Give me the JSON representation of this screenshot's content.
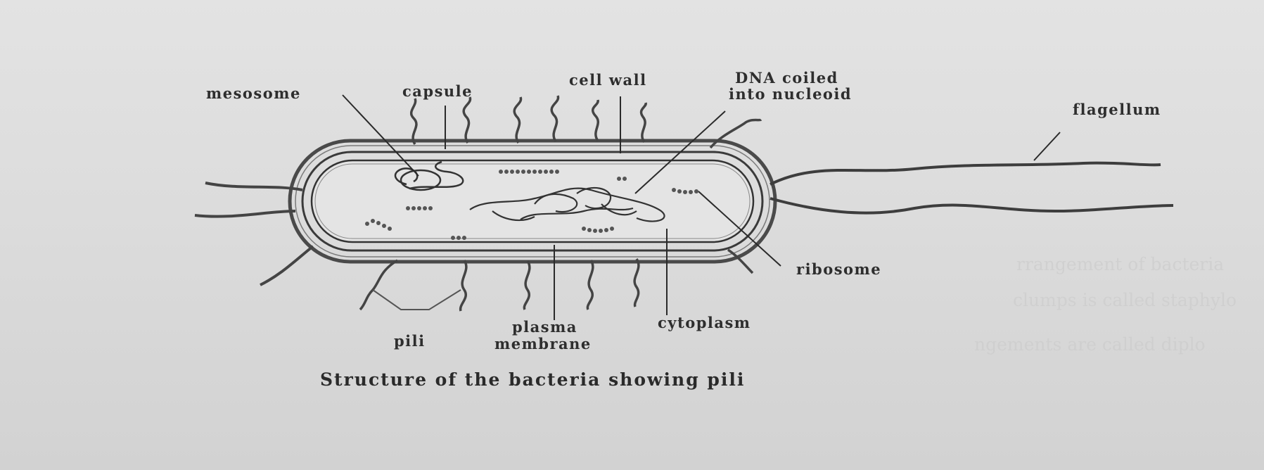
{
  "labels": {
    "mesosome": "mesosome",
    "capsule": "capsule",
    "cell_wall": "cell wall",
    "dna_line1": "DNA coiled",
    "dna_line2": "into nucleoid",
    "flagellum": "flagellum",
    "ribosome": "ribosome",
    "cytoplasm": "cytoplasm",
    "plasma_line1": "plasma",
    "plasma_line2": "membrane",
    "pili": "pili"
  },
  "caption": "Structure of the bacteria showing pili",
  "bleed_through": {
    "line1": "rrangement of bacteria",
    "line2": "clumps is called staphylo",
    "line3": "ngements are called diplo"
  },
  "colors": {
    "paper": "#dcdcdc",
    "ink": "#2e2e2e"
  }
}
